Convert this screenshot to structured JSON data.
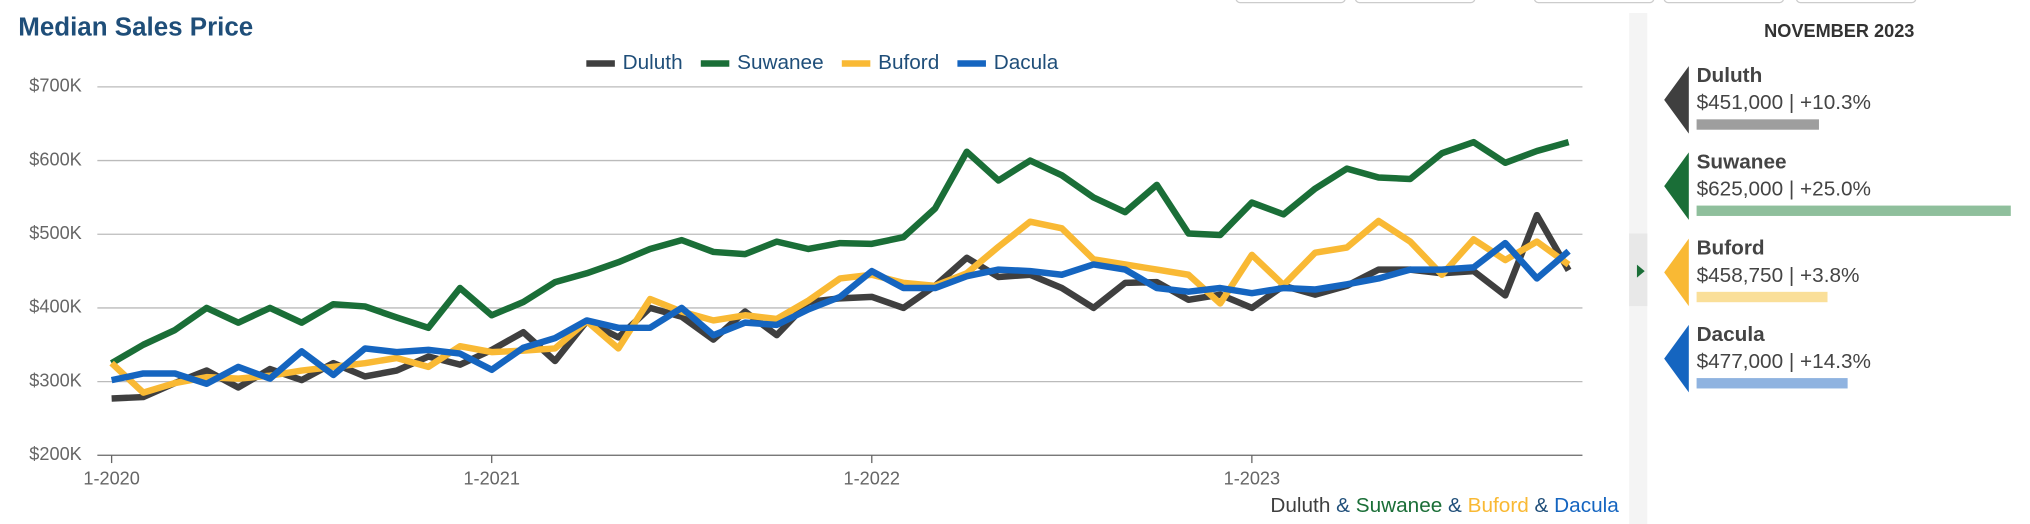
{
  "chart_data": {
    "type": "line",
    "title": "Median Sales Price",
    "categories": [
      "1-2020",
      null,
      null,
      null,
      null,
      null,
      null,
      null,
      null,
      null,
      null,
      null,
      "1-2021",
      null,
      null,
      null,
      null,
      null,
      null,
      null,
      null,
      null,
      null,
      null,
      "1-2022",
      null,
      null,
      null,
      null,
      null,
      null,
      null,
      null,
      null,
      null,
      null,
      "1-2023",
      null,
      null,
      null,
      null,
      null,
      null,
      null,
      null,
      null,
      null
    ],
    "series": [
      {
        "name": "Duluth",
        "color": "#3f3f3f",
        "values": [
          277000,
          279000,
          298000,
          315000,
          292000,
          317000,
          302000,
          325000,
          307000,
          315000,
          334000,
          323000,
          343000,
          367000,
          328000,
          382000,
          360000,
          400000,
          388000,
          357000,
          395000,
          363000,
          408000,
          413000,
          415000,
          400000,
          430000,
          468000,
          442000,
          445000,
          427000,
          400000,
          434000,
          435000,
          411000,
          418000,
          400000,
          430000,
          418000,
          430000,
          452000,
          452000,
          447000,
          450000,
          417000,
          526000,
          451000
        ]
      },
      {
        "name": "Suwanee",
        "color": "#1a6e37",
        "values": [
          325000,
          350000,
          370000,
          400000,
          380000,
          400000,
          380000,
          405000,
          402000,
          387000,
          373000,
          427000,
          390000,
          408000,
          435000,
          447000,
          462000,
          480000,
          492000,
          476000,
          473000,
          490000,
          480000,
          488000,
          487000,
          496000,
          535000,
          612000,
          573000,
          600000,
          580000,
          550000,
          530000,
          567000,
          501000,
          499000,
          543000,
          527000,
          562000,
          589000,
          577000,
          575000,
          610000,
          625000,
          597000,
          613000,
          625000
        ]
      },
      {
        "name": "Buford",
        "color": "#f9b934",
        "values": [
          325000,
          285000,
          298000,
          306000,
          304000,
          308000,
          315000,
          320000,
          325000,
          332000,
          320000,
          348000,
          340000,
          342000,
          345000,
          382000,
          345000,
          412000,
          395000,
          383000,
          390000,
          385000,
          410000,
          440000,
          445000,
          434000,
          430000,
          447000,
          483000,
          517000,
          508000,
          466000,
          459000,
          452000,
          445000,
          406000,
          472000,
          431000,
          475000,
          482000,
          518000,
          490000,
          445000,
          493000,
          465000,
          490000,
          458750
        ]
      },
      {
        "name": "Dacula",
        "color": "#1565c0",
        "values": [
          302000,
          311000,
          311000,
          297000,
          320000,
          304000,
          341000,
          309000,
          345000,
          340000,
          343000,
          338000,
          316000,
          346000,
          359000,
          383000,
          373000,
          373000,
          400000,
          363000,
          380000,
          377000,
          398000,
          415000,
          450000,
          427000,
          427000,
          443000,
          452000,
          450000,
          445000,
          459000,
          452000,
          427000,
          422000,
          427000,
          420000,
          427000,
          425000,
          432000,
          440000,
          452000,
          452000,
          455000,
          488000,
          440000,
          477000
        ]
      }
    ],
    "ylim": [
      200000,
      700000
    ],
    "yticks": [
      {
        "value": 200000,
        "label": "$200K"
      },
      {
        "value": 300000,
        "label": "$300K"
      },
      {
        "value": 400000,
        "label": "$400K"
      },
      {
        "value": 500000,
        "label": "$500K"
      },
      {
        "value": 600000,
        "label": "$600K"
      },
      {
        "value": 700000,
        "label": "$700K"
      }
    ],
    "grid": true,
    "legend": "top",
    "separator": "&"
  },
  "panel": {
    "title": "NOVEMBER 2023",
    "entries": [
      {
        "name": "Duluth",
        "summary": "$451,000 | +10.3%",
        "price": 451000,
        "color": "#3f3f3f",
        "bar_color": "#9e9e9e"
      },
      {
        "name": "Suwanee",
        "summary": "$625,000 | +25.0%",
        "price": 625000,
        "color": "#1a6e37",
        "bar_color": "#8fbf9c"
      },
      {
        "name": "Buford",
        "summary": "$458,750 | +3.8%",
        "price": 458750,
        "color": "#f9b934",
        "bar_color": "#fadf99"
      },
      {
        "name": "Dacula",
        "summary": "$477,000 | +14.3%",
        "price": 477000,
        "color": "#1565c0",
        "bar_color": "#8fb3e0"
      }
    ]
  }
}
